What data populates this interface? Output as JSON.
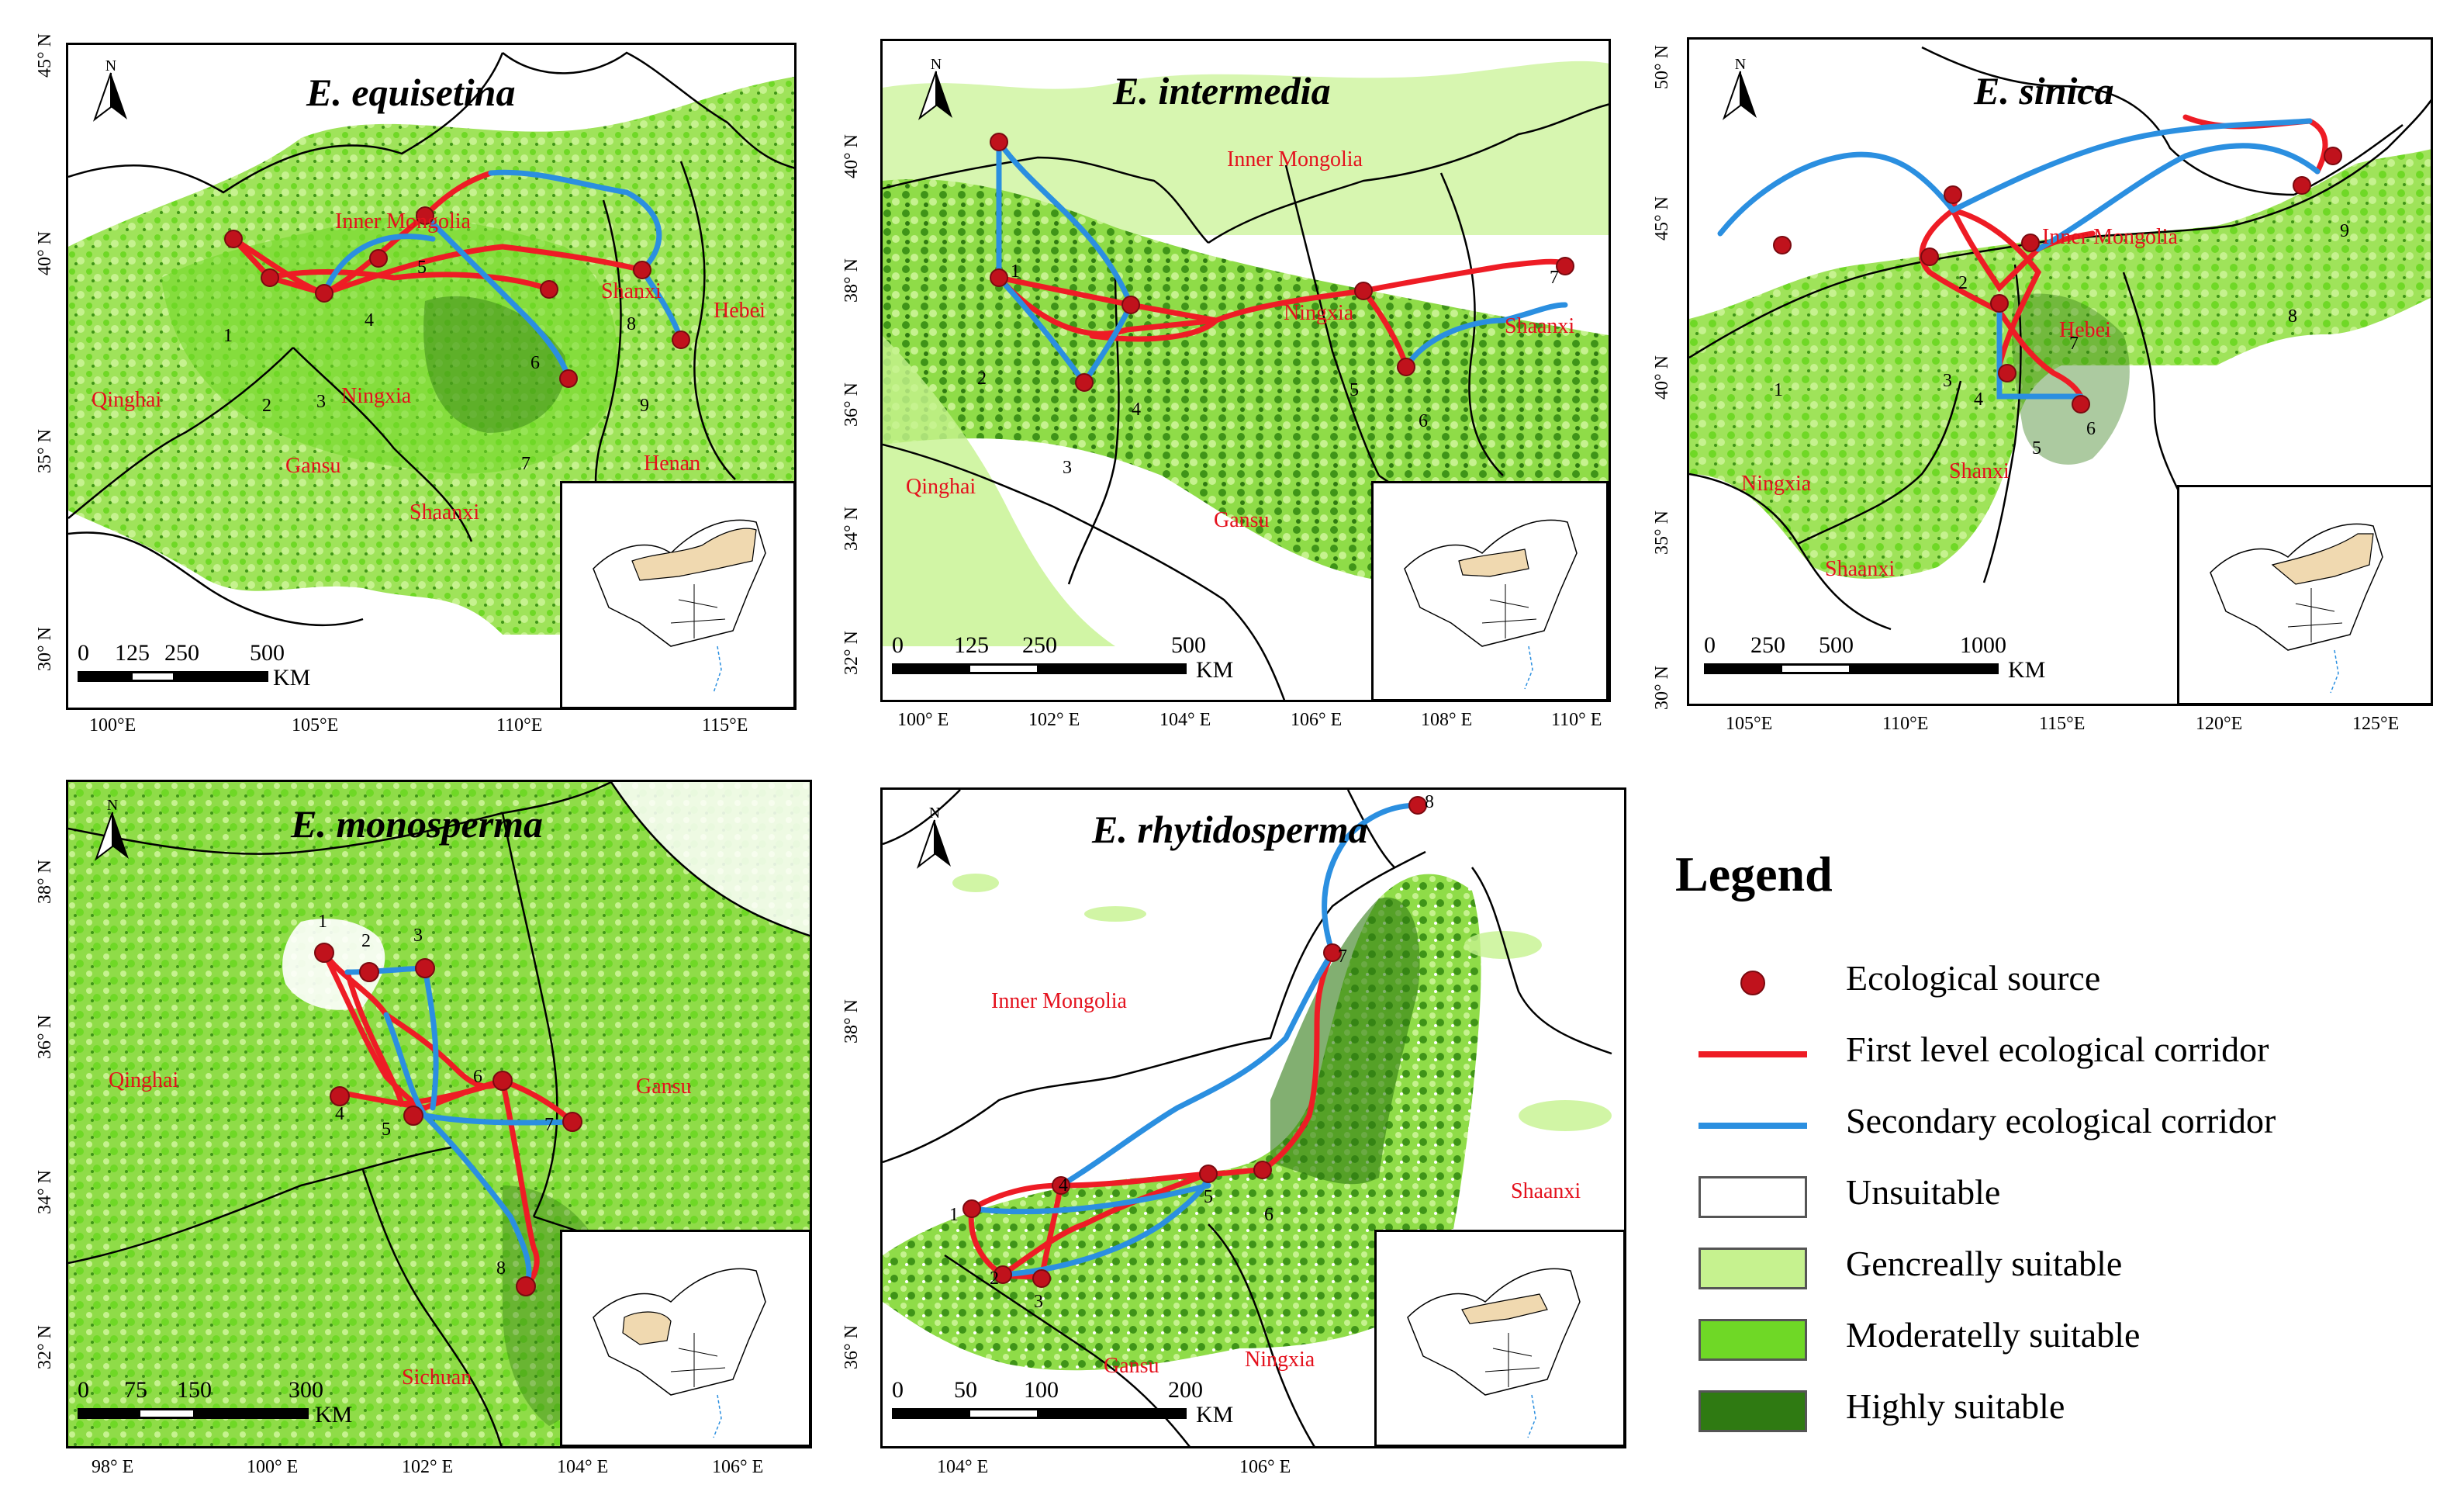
{
  "panels": [
    {
      "title": "E. equisetina",
      "regions": [
        "Inner Mongolia",
        "Qinghai",
        "Ningxia",
        "Gansu",
        "Shaanxi",
        "Shanxi",
        "Hebei",
        "Henan"
      ],
      "nodes": [
        "1",
        "2",
        "3",
        "4",
        "5",
        "6",
        "7",
        "8",
        "9"
      ],
      "x_ticks": [
        "100°E",
        "105°E",
        "110°E",
        "115°E"
      ],
      "y_ticks": [
        "45° N",
        "40° N",
        "35° N",
        "30° N"
      ],
      "scale": {
        "labels": [
          "0",
          "125",
          "250",
          "500"
        ],
        "unit": "KM"
      }
    },
    {
      "title": "E. intermedia",
      "regions": [
        "Inner Mongolia",
        "Ningxia",
        "Shaanxi",
        "Qinghai",
        "Gansu"
      ],
      "nodes": [
        "1",
        "2",
        "3",
        "4",
        "5",
        "6",
        "7"
      ],
      "x_ticks": [
        "100° E",
        "102° E",
        "104° E",
        "106° E",
        "108° E",
        "110° E"
      ],
      "y_ticks": [
        "40° N",
        "38° N",
        "36° N",
        "34° N",
        "32° N"
      ],
      "scale": {
        "labels": [
          "0",
          "125",
          "250",
          "500"
        ],
        "unit": "KM"
      }
    },
    {
      "title": "E. sinica",
      "regions": [
        "Inner Mongolia",
        "Hebei",
        "Ningxia",
        "Shanxi",
        "Shaanxi"
      ],
      "nodes": [
        "1",
        "2",
        "3",
        "4",
        "5",
        "6",
        "7",
        "8",
        "9"
      ],
      "x_ticks": [
        "105°E",
        "110°E",
        "115°E",
        "120°E",
        "125°E"
      ],
      "y_ticks": [
        "50° N",
        "45° N",
        "40° N",
        "35° N",
        "30° N"
      ],
      "scale": {
        "labels": [
          "0",
          "250",
          "500",
          "1000"
        ],
        "unit": "KM"
      }
    },
    {
      "title": "E. monosperma",
      "regions": [
        "Qinghai",
        "Gansu",
        "Sichuan"
      ],
      "nodes": [
        "1",
        "2",
        "3",
        "4",
        "5",
        "6",
        "7",
        "8"
      ],
      "x_ticks": [
        "98° E",
        "100° E",
        "102° E",
        "104° E",
        "106° E"
      ],
      "y_ticks": [
        "38° N",
        "36° N",
        "34° N",
        "32° N"
      ],
      "scale": {
        "labels": [
          "0",
          "75",
          "150",
          "300"
        ],
        "unit": "KM"
      }
    },
    {
      "title": "E. rhytidosperma",
      "regions": [
        "Inner Mongolia",
        "Shaanxi",
        "Gansu",
        "Ningxia"
      ],
      "nodes": [
        "1",
        "2",
        "3",
        "4",
        "5",
        "6",
        "7",
        "8"
      ],
      "x_ticks": [
        "104° E",
        "106° E"
      ],
      "y_ticks": [
        "38° N",
        "36° N"
      ],
      "scale": {
        "labels": [
          "0",
          "50",
          "100",
          "200"
        ],
        "unit": "KM"
      }
    }
  ],
  "north_label": "N",
  "legend": {
    "title": "Legend",
    "items": [
      {
        "label": "Ecological source",
        "kind": "point",
        "color": "#c0121c"
      },
      {
        "label": "First level ecological corridor",
        "kind": "line",
        "color": "#ee1c25"
      },
      {
        "label": "Secondary ecological corridor",
        "kind": "line",
        "color": "#2b8fe0"
      },
      {
        "label": "Unsuitable",
        "kind": "fill",
        "color": "#ffffff"
      },
      {
        "label": "Gencreally suitable",
        "kind": "fill",
        "color": "#c6f28f"
      },
      {
        "label": "Moderatelly suitable",
        "kind": "fill",
        "color": "#6fd826"
      },
      {
        "label": "Highly suitable",
        "kind": "fill",
        "color": "#2f7a12"
      }
    ]
  }
}
